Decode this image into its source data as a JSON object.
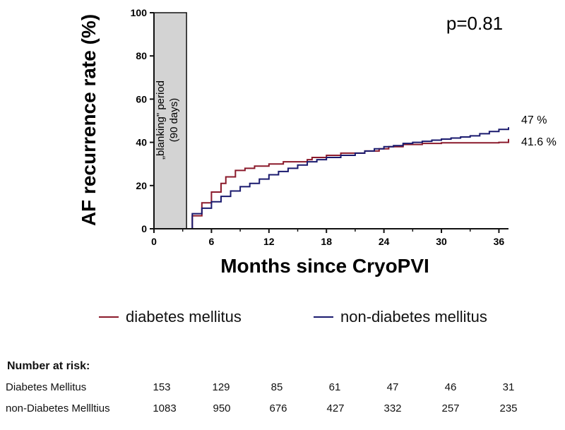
{
  "chart_data": {
    "type": "line",
    "step": true,
    "ylabel": "AF recurrence rate (%)",
    "xlabel": "Months since CryoPVI",
    "xlim": [
      0,
      37
    ],
    "ylim": [
      0,
      100
    ],
    "xticks": [
      0,
      6,
      12,
      18,
      24,
      30,
      36
    ],
    "yticks": [
      0,
      20,
      40,
      60,
      80,
      100
    ],
    "annotation_p": "p=0.81",
    "shaded_region": {
      "x0": 0,
      "x1": 3.4,
      "label_line1": "„blanking\" period",
      "label_line2": "(90 days)",
      "color": "#d3d3d3"
    },
    "series": [
      {
        "name": "diabetes mellitus",
        "color": "#8b1a2b",
        "end_label": "41.6 %",
        "points": [
          [
            3.5,
            0
          ],
          [
            4,
            6
          ],
          [
            5,
            12
          ],
          [
            6,
            17
          ],
          [
            7,
            21
          ],
          [
            7.5,
            24
          ],
          [
            8.5,
            27
          ],
          [
            9.5,
            28
          ],
          [
            10.5,
            29
          ],
          [
            12,
            30
          ],
          [
            13.5,
            31
          ],
          [
            16,
            32
          ],
          [
            16.5,
            33
          ],
          [
            18,
            34
          ],
          [
            19.5,
            35
          ],
          [
            22,
            36
          ],
          [
            23.5,
            37
          ],
          [
            24.5,
            38
          ],
          [
            26,
            39
          ],
          [
            28,
            39.5
          ],
          [
            30,
            39.8
          ],
          [
            36,
            40
          ],
          [
            37,
            41.6
          ]
        ]
      },
      {
        "name": "non-diabetes mellitus",
        "color": "#1a1a6e",
        "end_label": "47 %",
        "points": [
          [
            3.5,
            0
          ],
          [
            4,
            7
          ],
          [
            5,
            9.5
          ],
          [
            6,
            12.5
          ],
          [
            7,
            15
          ],
          [
            8,
            17.5
          ],
          [
            9,
            19.5
          ],
          [
            10,
            21
          ],
          [
            11,
            23
          ],
          [
            12,
            25
          ],
          [
            13,
            26.5
          ],
          [
            14,
            28
          ],
          [
            15,
            29.5
          ],
          [
            16,
            31
          ],
          [
            17,
            32
          ],
          [
            18,
            33
          ],
          [
            19.5,
            34
          ],
          [
            21,
            35
          ],
          [
            22,
            36
          ],
          [
            23,
            37
          ],
          [
            24,
            38
          ],
          [
            25,
            38.5
          ],
          [
            26,
            39.5
          ],
          [
            27,
            40
          ],
          [
            28,
            40.5
          ],
          [
            29,
            41
          ],
          [
            30,
            41.5
          ],
          [
            31,
            42
          ],
          [
            32,
            42.5
          ],
          [
            33,
            43
          ],
          [
            34,
            44
          ],
          [
            35,
            45
          ],
          [
            36,
            46
          ],
          [
            37,
            47
          ]
        ]
      }
    ]
  },
  "legend": {
    "item1": {
      "label": "diabetes mellitus",
      "color": "#8b1a2b"
    },
    "item2": {
      "label": "non-diabetes mellitus",
      "color": "#1a1a6e"
    }
  },
  "risk_table": {
    "title": "Number at risk:",
    "rows": [
      {
        "label": "Diabetes Mellitus",
        "values": [
          "153",
          "129",
          "85",
          "61",
          "47",
          "46",
          "31"
        ]
      },
      {
        "label": "non-Diabetes Mellltius",
        "values": [
          "1083",
          "950",
          "676",
          "427",
          "332",
          "257",
          "235"
        ]
      }
    ]
  }
}
